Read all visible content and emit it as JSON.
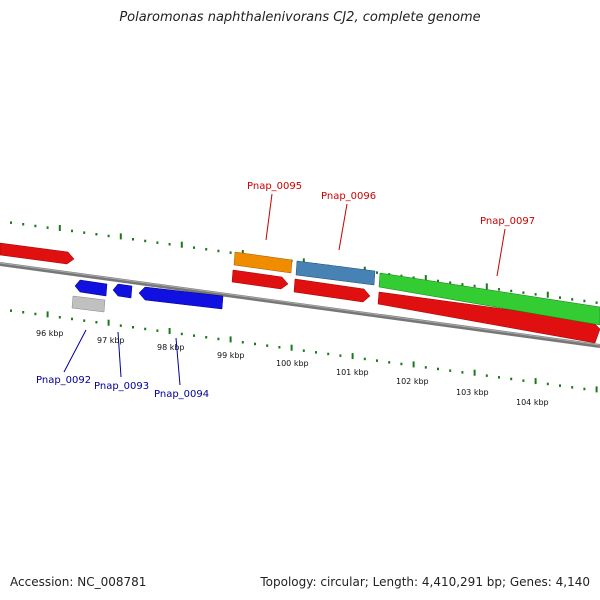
{
  "title": "Polaromonas naphthalenivorans CJ2, complete genome",
  "footer": {
    "accession": "Accession: NC_008781",
    "summary": "Topology: circular; Length: 4,410,291 bp; Genes: 4,140"
  },
  "colors": {
    "red": "#e01010",
    "blue": "#1010e0",
    "gray": "#bdbdbd",
    "orange": "#f08c00",
    "steelblue": "#4682b4",
    "green": "#33cc33",
    "backbone": "#888888",
    "tick": "#1a7a1a",
    "label_red": "#cc0000",
    "label_blue": "#000099"
  },
  "scale_labels": [
    "96 kbp",
    "97 kbp",
    "98 kbp",
    "99 kbp",
    "100 kbp",
    "101 kbp",
    "102 kbp",
    "103 kbp",
    "104 kbp"
  ],
  "gene_labels": {
    "top": [
      "Pnap_0095",
      "Pnap_0096",
      "Pnap_0097"
    ],
    "bottom": [
      "Pnap_0092",
      "Pnap_0093",
      "Pnap_0094"
    ]
  }
}
